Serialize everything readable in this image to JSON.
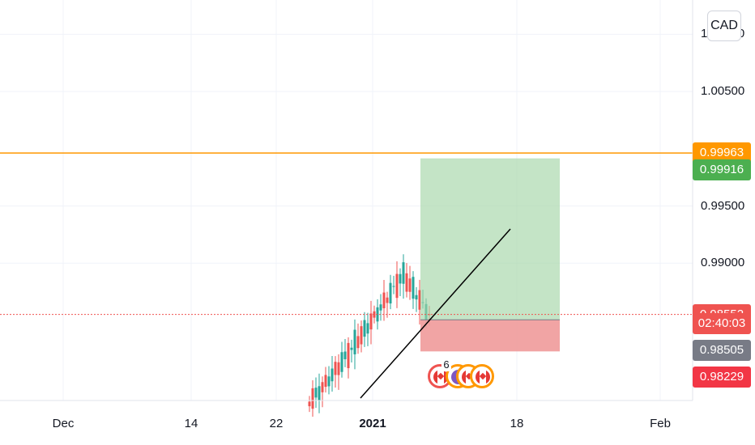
{
  "chart_data": {
    "type": "candlestick",
    "symbol_currency": "CAD",
    "x_ticks": [
      "Dec",
      "14",
      "22",
      "2021",
      "18",
      "Feb"
    ],
    "y_ticks": [
      "1.01000",
      "1.00500",
      "0.99500",
      "0.99000"
    ],
    "y_range": [
      0.978,
      1.013
    ],
    "price_labels": [
      {
        "label": "horizontal-line",
        "value": "0.99963",
        "color": "#ff9800"
      },
      {
        "label": "take-profit",
        "value": "0.99916",
        "color": "#4caf50"
      },
      {
        "label": "last-price",
        "value": "0.98552",
        "color": "#ef5350"
      },
      {
        "label": "countdown",
        "value": "02:40:03",
        "color": "#ef5350"
      },
      {
        "label": "entry",
        "value": "0.98505",
        "color": "#787b86"
      },
      {
        "label": "stop-loss",
        "value": "0.98229",
        "color": "#f23645"
      }
    ],
    "position": {
      "entry": 0.98505,
      "take_profit": 0.99916,
      "stop_loss": 0.98229
    },
    "horizontal_line": 0.99963,
    "event_count": "6"
  }
}
